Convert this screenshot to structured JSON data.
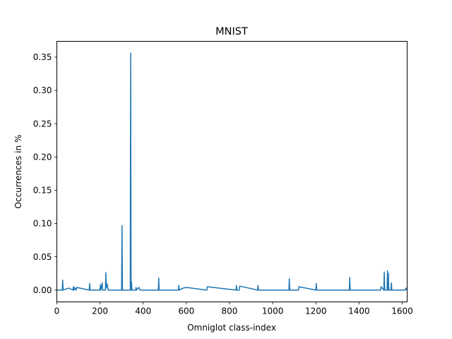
{
  "chart_data": {
    "type": "line",
    "title": "MNIST",
    "xlabel": "Omniglot class-index",
    "ylabel": "Occurrences in %",
    "xlim": [
      0,
      1623
    ],
    "ylim": [
      -0.0178,
      0.3738
    ],
    "x_ticks": [
      0,
      200,
      400,
      600,
      800,
      1000,
      1200,
      1400,
      1600
    ],
    "y_ticks": [
      0.0,
      0.05,
      0.1,
      0.15,
      0.2,
      0.25,
      0.3,
      0.35
    ],
    "x_tick_labels": [
      "0",
      "200",
      "400",
      "600",
      "800",
      "1000",
      "1200",
      "1400",
      "1600"
    ],
    "y_tick_labels": [
      "0.00",
      "0.05",
      "0.10",
      "0.15",
      "0.20",
      "0.25",
      "0.30",
      "0.35"
    ],
    "grid": false,
    "legend": null,
    "series": [
      {
        "color": "#1f77b4",
        "x": [
          0,
          25,
          27,
          29,
          55,
          75,
          77,
          80,
          82,
          90,
          92,
          150,
          152,
          154,
          200,
          202,
          204,
          210,
          212,
          225,
          227,
          229,
          232,
          235,
          238,
          300,
          302,
          304,
          340,
          342,
          344,
          346,
          348,
          365,
          367,
          369,
          380,
          385,
          470,
          472,
          474,
          563,
          565,
          567,
          585,
          600,
          695,
          697,
          830,
          832,
          834,
          845,
          847,
          930,
          932,
          934,
          1075,
          1077,
          1079,
          1120,
          1122,
          1200,
          1202,
          1204,
          1355,
          1357,
          1359,
          1500,
          1502,
          1515,
          1517,
          1519,
          1530,
          1532,
          1534,
          1536,
          1538,
          1548,
          1550,
          1552,
          1615,
          1617,
          1623
        ],
        "y": [
          0.0,
          0.0,
          0.015,
          0.0,
          0.003,
          0.0,
          0.005,
          0.0,
          0.004,
          0.0,
          0.004,
          0.0,
          0.01,
          0.0,
          0.0,
          0.008,
          0.0,
          0.011,
          0.0,
          0.0,
          0.026,
          0.003,
          0.01,
          0.005,
          0.0,
          0.0,
          0.097,
          0.0,
          0.0,
          0.356,
          0.0,
          0.012,
          0.0,
          0.0,
          0.004,
          0.0,
          0.004,
          0.0,
          0.0,
          0.018,
          0.0,
          0.0,
          0.007,
          0.0,
          0.003,
          0.004,
          0.0,
          0.005,
          0.0,
          0.007,
          0.0,
          0.0,
          0.006,
          0.0,
          0.007,
          0.0,
          0.0,
          0.017,
          0.0,
          0.0,
          0.005,
          0.0,
          0.01,
          0.0,
          0.0,
          0.019,
          0.0,
          0.0,
          0.005,
          0.0,
          0.027,
          0.0,
          0.0,
          0.029,
          0.0,
          0.025,
          0.0,
          0.0,
          0.011,
          0.0,
          0.0,
          0.003,
          0.0
        ]
      }
    ]
  }
}
